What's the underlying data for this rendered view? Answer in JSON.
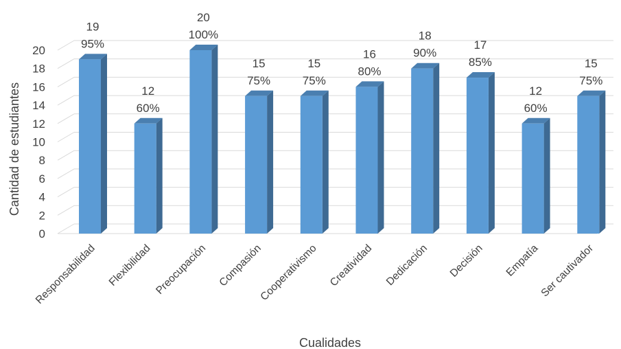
{
  "chart_data": {
    "type": "bar",
    "style": "3d-clustered-column",
    "title": "",
    "xlabel": "Cualidades",
    "ylabel": "Cantidad de estudiantes",
    "ylim": [
      0,
      20
    ],
    "yticks": [
      0,
      2,
      4,
      6,
      8,
      10,
      12,
      14,
      16,
      18,
      20
    ],
    "grid": true,
    "legend": "none",
    "categories": [
      "Responsabilidad",
      "Flexibilidad",
      "Preocupación",
      "Compasión",
      "Cooperativismo",
      "Creatividad",
      "Dedicación",
      "Decisión",
      "Empatía",
      "Ser cautivador"
    ],
    "values": [
      19,
      12,
      20,
      15,
      15,
      16,
      18,
      17,
      12,
      15
    ],
    "percent_labels": [
      "95%",
      "60%",
      "100%",
      "75%",
      "75%",
      "80%",
      "90%",
      "85%",
      "60%",
      "75%"
    ],
    "colors": {
      "bar_front": "#5b9bd5",
      "bar_side": "#3e6a93",
      "bar_top": "#4a7fb0",
      "grid": "#d9d9d9",
      "text": "#404040"
    }
  }
}
